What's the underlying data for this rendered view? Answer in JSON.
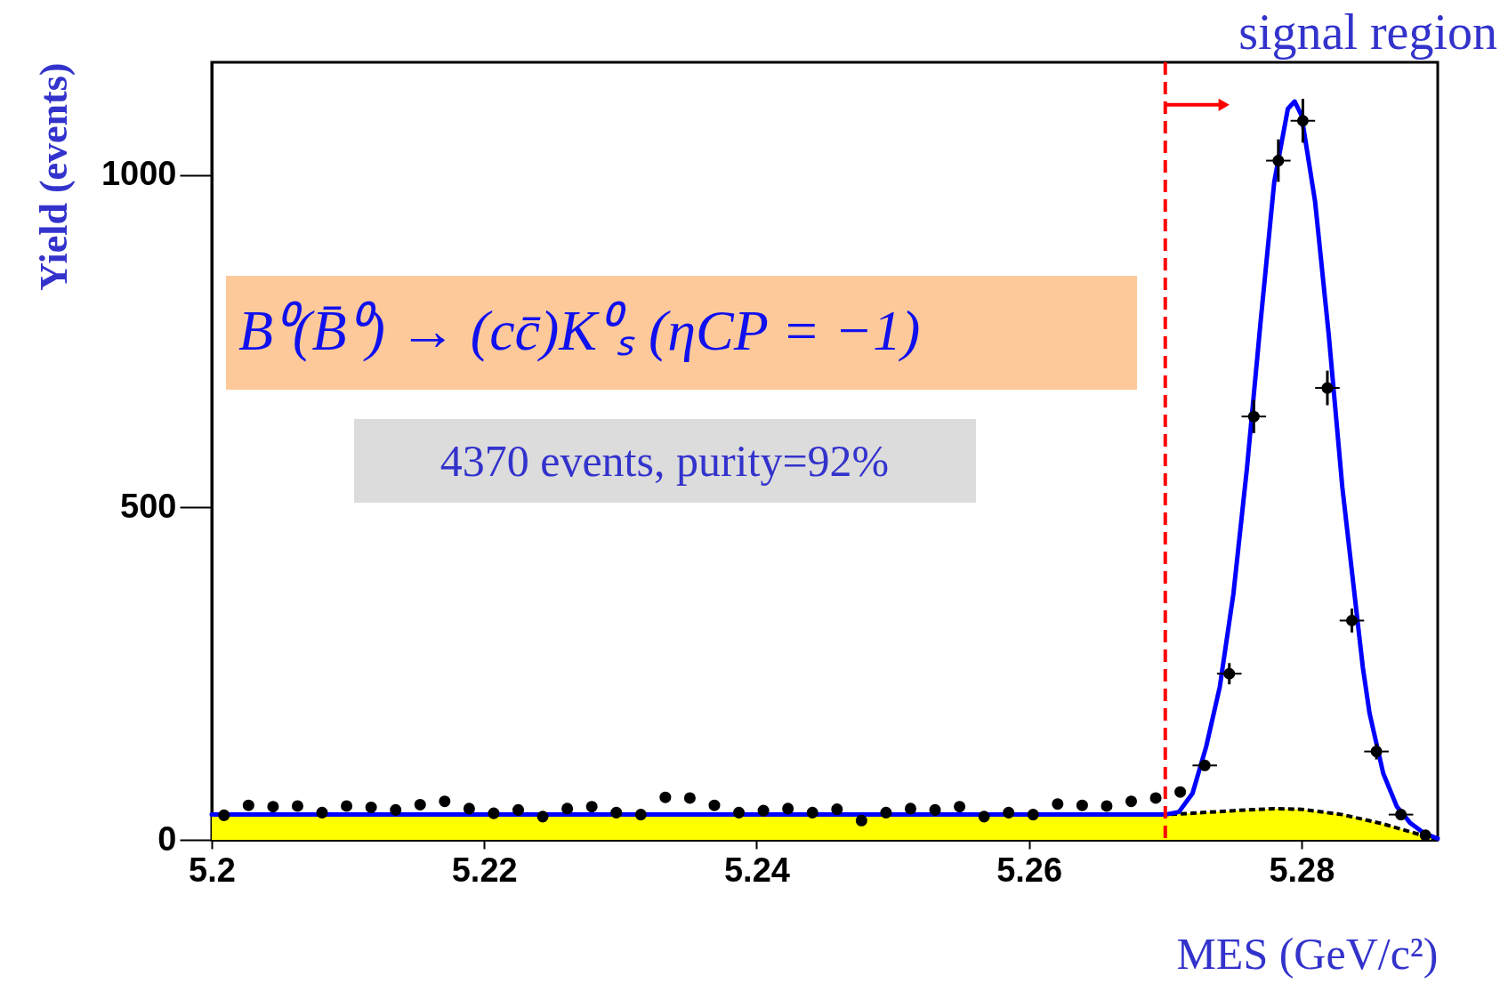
{
  "chart_data": {
    "type": "scatter",
    "xlabel": "MES (GeV/c²)",
    "ylabel": "Yield (events)",
    "annotations": [
      "B⁰(B̄⁰) → (cc̄)K⁰ₛ     (ηCP = −1)",
      "4370 events,  purity=92%",
      {
        "text": "signal region",
        "x": 5.27,
        "y": 1106
      }
    ],
    "xlim": [
      5.2,
      5.29
    ],
    "ylim": [
      0,
      1170
    ],
    "xticks": [
      5.2,
      5.22,
      5.24,
      5.26,
      5.28
    ],
    "yticks": [
      0,
      500,
      1000
    ],
    "grid": false,
    "ref_lines": [
      {
        "axis": "x",
        "value": 5.27,
        "color": "#ff0000",
        "line_style": "dashed"
      }
    ],
    "series": [
      {
        "type": "area",
        "color": "#ffff00",
        "line_style": "dotted",
        "x": [
          5.2,
          5.27,
          5.272,
          5.275,
          5.278,
          5.28,
          5.283,
          5.286,
          5.288,
          5.29
        ],
        "values": [
          38,
          38,
          40,
          44,
          47,
          46,
          38,
          24,
          12,
          0
        ]
      },
      {
        "type": "line",
        "color": "#0000ff",
        "line_style": "solid",
        "x": [
          5.2,
          5.27,
          5.271,
          5.272,
          5.273,
          5.274,
          5.275,
          5.276,
          5.277,
          5.278,
          5.279,
          5.2795,
          5.28,
          5.281,
          5.282,
          5.283,
          5.2845,
          5.285,
          5.286,
          5.287,
          5.288,
          5.289,
          5.29
        ],
        "values": [
          38,
          38,
          42,
          70,
          140,
          230,
          370,
          560,
          780,
          990,
          1100,
          1111,
          1090,
          960,
          760,
          530,
          260,
          190,
          100,
          50,
          25,
          10,
          2
        ]
      },
      {
        "color": "#000000",
        "marker": "circle",
        "x": [
          5.2009,
          5.2027,
          5.2045,
          5.2063,
          5.2081,
          5.2099,
          5.2117,
          5.2135,
          5.2153,
          5.2171,
          5.2189,
          5.2207,
          5.2225,
          5.2243,
          5.2261,
          5.2279,
          5.2297,
          5.2315,
          5.2333,
          5.2351,
          5.2369,
          5.2387,
          5.2405,
          5.2423,
          5.2441,
          5.2459,
          5.2477,
          5.2495,
          5.2513,
          5.2531,
          5.2549,
          5.2567,
          5.2585,
          5.2603,
          5.2621,
          5.2639,
          5.2657,
          5.2675,
          5.2693,
          5.2711,
          5.2729,
          5.2747,
          5.2765,
          5.2783,
          5.2801,
          5.2819,
          5.2837,
          5.2855,
          5.2873,
          5.2891
        ],
        "values": [
          37,
          52,
          50,
          51,
          41,
          51,
          49,
          45,
          53,
          58,
          47,
          40,
          45,
          35,
          47,
          50,
          41,
          38,
          64,
          63,
          52,
          41,
          44,
          47,
          41,
          46,
          29,
          41,
          47,
          45,
          50,
          35,
          41,
          38,
          54,
          52,
          51,
          58,
          63,
          72,
          112,
          250,
          637,
          1022,
          1082,
          680,
          330,
          133,
          38,
          7
        ],
        "errors": [
          null,
          null,
          null,
          null,
          null,
          null,
          null,
          null,
          null,
          null,
          null,
          null,
          null,
          null,
          null,
          null,
          null,
          null,
          null,
          null,
          null,
          null,
          null,
          null,
          null,
          null,
          null,
          null,
          null,
          null,
          null,
          null,
          null,
          null,
          null,
          null,
          null,
          null,
          null,
          null,
          null,
          16,
          25,
          32,
          33,
          26,
          18,
          12,
          null,
          null
        ],
        "xerrors": [
          null,
          null,
          null,
          null,
          null,
          null,
          null,
          null,
          null,
          null,
          null,
          null,
          null,
          null,
          null,
          null,
          null,
          null,
          null,
          null,
          null,
          null,
          null,
          null,
          null,
          null,
          null,
          null,
          null,
          null,
          null,
          null,
          null,
          null,
          null,
          null,
          null,
          null,
          null,
          null,
          0.0009,
          0.0009,
          0.0009,
          0.0009,
          0.0009,
          0.0009,
          0.0009,
          0.0009,
          0.0009,
          null
        ]
      }
    ]
  }
}
